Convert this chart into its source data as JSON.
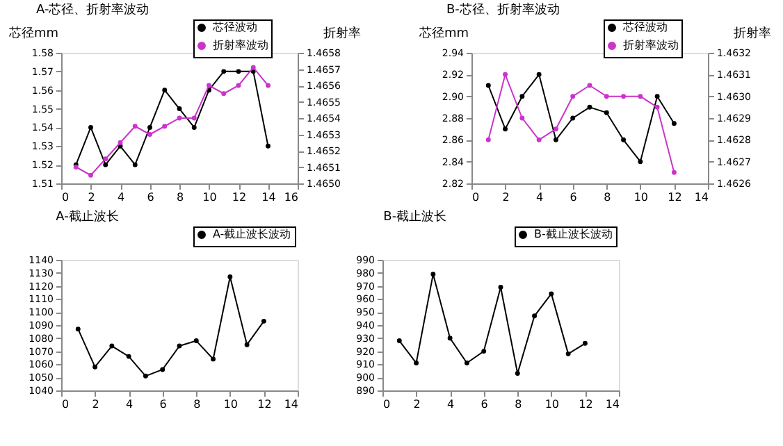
{
  "chart_data": [
    {
      "type": "line",
      "title": "A-芯径、折射率波动",
      "ylabel": "芯径mm",
      "y2label": "折射率",
      "x": [
        1,
        2,
        3,
        4,
        5,
        6,
        7,
        8,
        9,
        10,
        11,
        12,
        13,
        14
      ],
      "xlim": [
        0,
        16
      ],
      "xticks": [
        0,
        2,
        4,
        6,
        8,
        10,
        12,
        14,
        16
      ],
      "ylim": [
        1.51,
        1.58
      ],
      "yticks": [
        1.51,
        1.52,
        1.53,
        1.54,
        1.55,
        1.56,
        1.57,
        1.58
      ],
      "y2lim": [
        1.465,
        1.4658
      ],
      "y2ticks": [
        {
          "value": 1.465,
          "label": "1.4650"
        },
        1.4651,
        1.4652,
        1.4653,
        1.4654,
        1.4655,
        1.4656,
        1.4657,
        1.4658
      ],
      "grid": false,
      "legend": "top right",
      "marker": "circle",
      "line_style": "solid",
      "series": [
        {
          "name": "芯径波动",
          "color": "#000000",
          "values": [
            1.52,
            1.54,
            1.52,
            1.53,
            1.52,
            1.54,
            1.56,
            1.55,
            1.54,
            1.56,
            1.57,
            1.57,
            1.57,
            1.53
          ]
        },
        {
          "name": "折射率波动",
          "color": "#cc33cc",
          "axis": "y2",
          "values": [
            1.4651,
            1.46505,
            1.46515,
            1.46525,
            1.46535,
            1.4653,
            1.46535,
            1.4654,
            1.4654,
            1.4656,
            1.46555,
            1.4656,
            1.46571,
            1.4656
          ]
        }
      ]
    },
    {
      "type": "line",
      "title": "B-芯径、折射率波动",
      "ylabel": "芯径mm",
      "y2label": "折射率",
      "x": [
        1,
        2,
        3,
        4,
        5,
        6,
        7,
        8,
        9,
        10,
        11,
        12
      ],
      "xlim": [
        0,
        14
      ],
      "xticks": [
        0,
        2,
        4,
        6,
        8,
        10,
        12,
        14
      ],
      "ylim": [
        2.82,
        2.94
      ],
      "yticks": [
        2.82,
        2.84,
        2.86,
        2.88,
        {
          "value": 2.9,
          "label": "2.90"
        },
        2.92,
        2.94
      ],
      "y2lim": [
        1.4626,
        1.4632
      ],
      "y2ticks": [
        1.4626,
        1.4627,
        1.4628,
        1.4629,
        {
          "value": 1.463,
          "label": "1.4630"
        },
        1.4631,
        1.4632
      ],
      "grid": false,
      "legend": "top right",
      "marker": "circle",
      "line_style": "solid",
      "series": [
        {
          "name": "芯径波动",
          "color": "#000000",
          "values": [
            2.91,
            2.87,
            2.9,
            2.92,
            2.86,
            2.88,
            2.89,
            2.885,
            2.86,
            2.84,
            2.9,
            2.875
          ]
        },
        {
          "name": "折射率波动",
          "color": "#cc33cc",
          "axis": "y2",
          "values": [
            1.4628,
            1.4631,
            1.4629,
            1.4628,
            1.46285,
            1.463,
            1.46305,
            1.463,
            1.463,
            1.463,
            1.46295,
            1.46265
          ]
        }
      ]
    },
    {
      "type": "line",
      "title": "A-截止波长",
      "x": [
        1,
        2,
        3,
        4,
        5,
        6,
        7,
        8,
        9,
        10,
        11,
        12
      ],
      "xlim": [
        0,
        14
      ],
      "xticks": [
        0,
        2,
        4,
        6,
        8,
        10,
        12,
        14
      ],
      "ylim": [
        1040,
        1140
      ],
      "yticks": [
        1040,
        1050,
        1060,
        1070,
        1080,
        1090,
        1100,
        1110,
        1120,
        1130,
        1140
      ],
      "grid": false,
      "legend": "top right",
      "marker": "circle",
      "line_style": "solid",
      "series": [
        {
          "name": "A-截止波长波动",
          "color": "#000000",
          "values": [
            1087,
            1058,
            1074,
            1066,
            1051,
            1056,
            1074,
            1078,
            1064,
            1127,
            1075,
            1093
          ]
        }
      ]
    },
    {
      "type": "line",
      "title": "B-截止波长",
      "x": [
        1,
        2,
        3,
        4,
        5,
        6,
        7,
        8,
        9,
        10,
        11,
        12
      ],
      "xlim": [
        0,
        14
      ],
      "xticks": [
        0,
        2,
        4,
        6,
        8,
        10,
        12,
        14
      ],
      "ylim": [
        890,
        990
      ],
      "yticks": [
        890,
        900,
        910,
        920,
        930,
        940,
        950,
        960,
        970,
        980,
        990
      ],
      "grid": false,
      "legend": "top right",
      "marker": "circle",
      "line_style": "solid",
      "series": [
        {
          "name": "B-截止波长波动",
          "color": "#000000",
          "values": [
            928,
            911,
            979,
            930,
            911,
            920,
            969,
            903,
            947,
            964,
            918,
            926
          ]
        }
      ]
    }
  ]
}
